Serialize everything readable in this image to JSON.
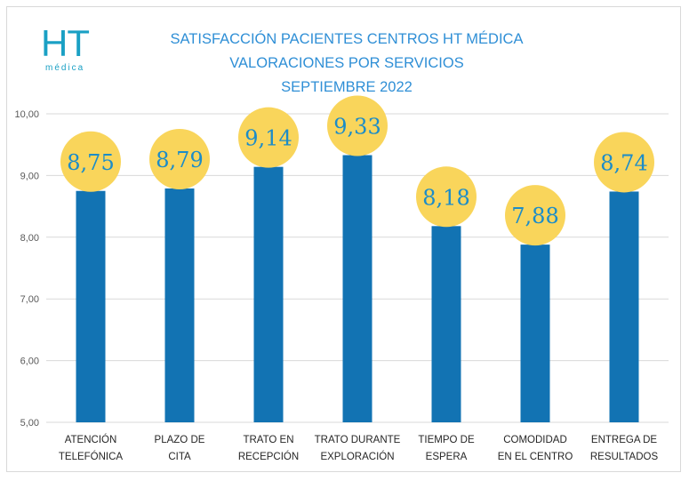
{
  "logo": {
    "brand": "HT",
    "sub": "médica"
  },
  "title_lines": [
    "SATISFACCIÓN PACIENTES CENTROS HT MÉDICA",
    "VALORACIONES POR SERVICIOS",
    "SEPTIEMBRE 2022"
  ],
  "colors": {
    "bar": "#1273b3",
    "bubble": "#f9d55b",
    "label": "#1c8cc8",
    "title": "#2f8fd6",
    "grid": "#d9d9d9"
  },
  "chart_data": {
    "type": "bar",
    "title": "SATISFACCIÓN PACIENTES CENTROS HT MÉDICA / VALORACIONES POR SERVICIOS / SEPTIEMBRE 2022",
    "categories": [
      [
        "ATENCIÓN",
        "TELEFÓNICA"
      ],
      [
        "PLAZO DE",
        "CITA"
      ],
      [
        "TRATO EN",
        "RECEPCIÓN"
      ],
      [
        "TRATO DURANTE",
        "EXPLORACIÓN"
      ],
      [
        "TIEMPO DE",
        "ESPERA"
      ],
      [
        "COMODIDAD",
        "EN EL CENTRO"
      ],
      [
        "ENTREGA DE",
        "RESULTADOS"
      ]
    ],
    "values": [
      8.75,
      8.79,
      9.14,
      9.33,
      8.18,
      7.88,
      8.74
    ],
    "value_labels": [
      "8,75",
      "8,79",
      "9,14",
      "9,33",
      "8,18",
      "7,88",
      "8,74"
    ],
    "yticks": [
      5,
      6,
      7,
      8,
      9,
      10
    ],
    "ytick_labels": [
      "5,00",
      "6,00",
      "7,00",
      "8,00",
      "9,00",
      "10,00"
    ],
    "ylim": [
      5,
      10
    ],
    "xlabel": "",
    "ylabel": "",
    "grid": true
  }
}
